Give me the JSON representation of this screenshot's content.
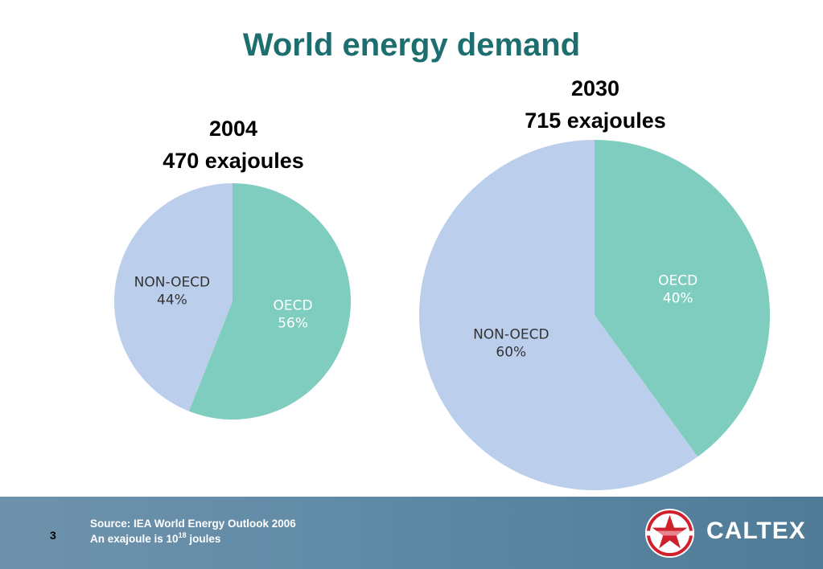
{
  "title": "World energy demand",
  "chart_data": [
    {
      "type": "pie",
      "header": [
        "2004",
        "470 exajoules"
      ],
      "slices": [
        {
          "label": "OECD",
          "pct_label": "56%",
          "value": 56
        },
        {
          "label": "NON-OECD",
          "pct_label": "44%",
          "value": 44
        }
      ]
    },
    {
      "type": "pie",
      "header": [
        "2030",
        "715 exajoules"
      ],
      "slices": [
        {
          "label": "OECD",
          "pct_label": "40%",
          "value": 40
        },
        {
          "label": "NON-OECD",
          "pct_label": "60%",
          "value": 60
        }
      ]
    }
  ],
  "colors": {
    "oecd": "#7ecdbe",
    "non_oecd": "#bbcfec",
    "title": "#1d6f6f"
  },
  "footer": {
    "page_number": "3",
    "source": "Source: IEA World Energy Outlook 2006",
    "note_prefix": "An exajoule is 10",
    "note_exp": "18",
    "note_suffix": " joules",
    "logo_text": "CALTEX",
    "logo_icon": "caltex-star-icon"
  }
}
